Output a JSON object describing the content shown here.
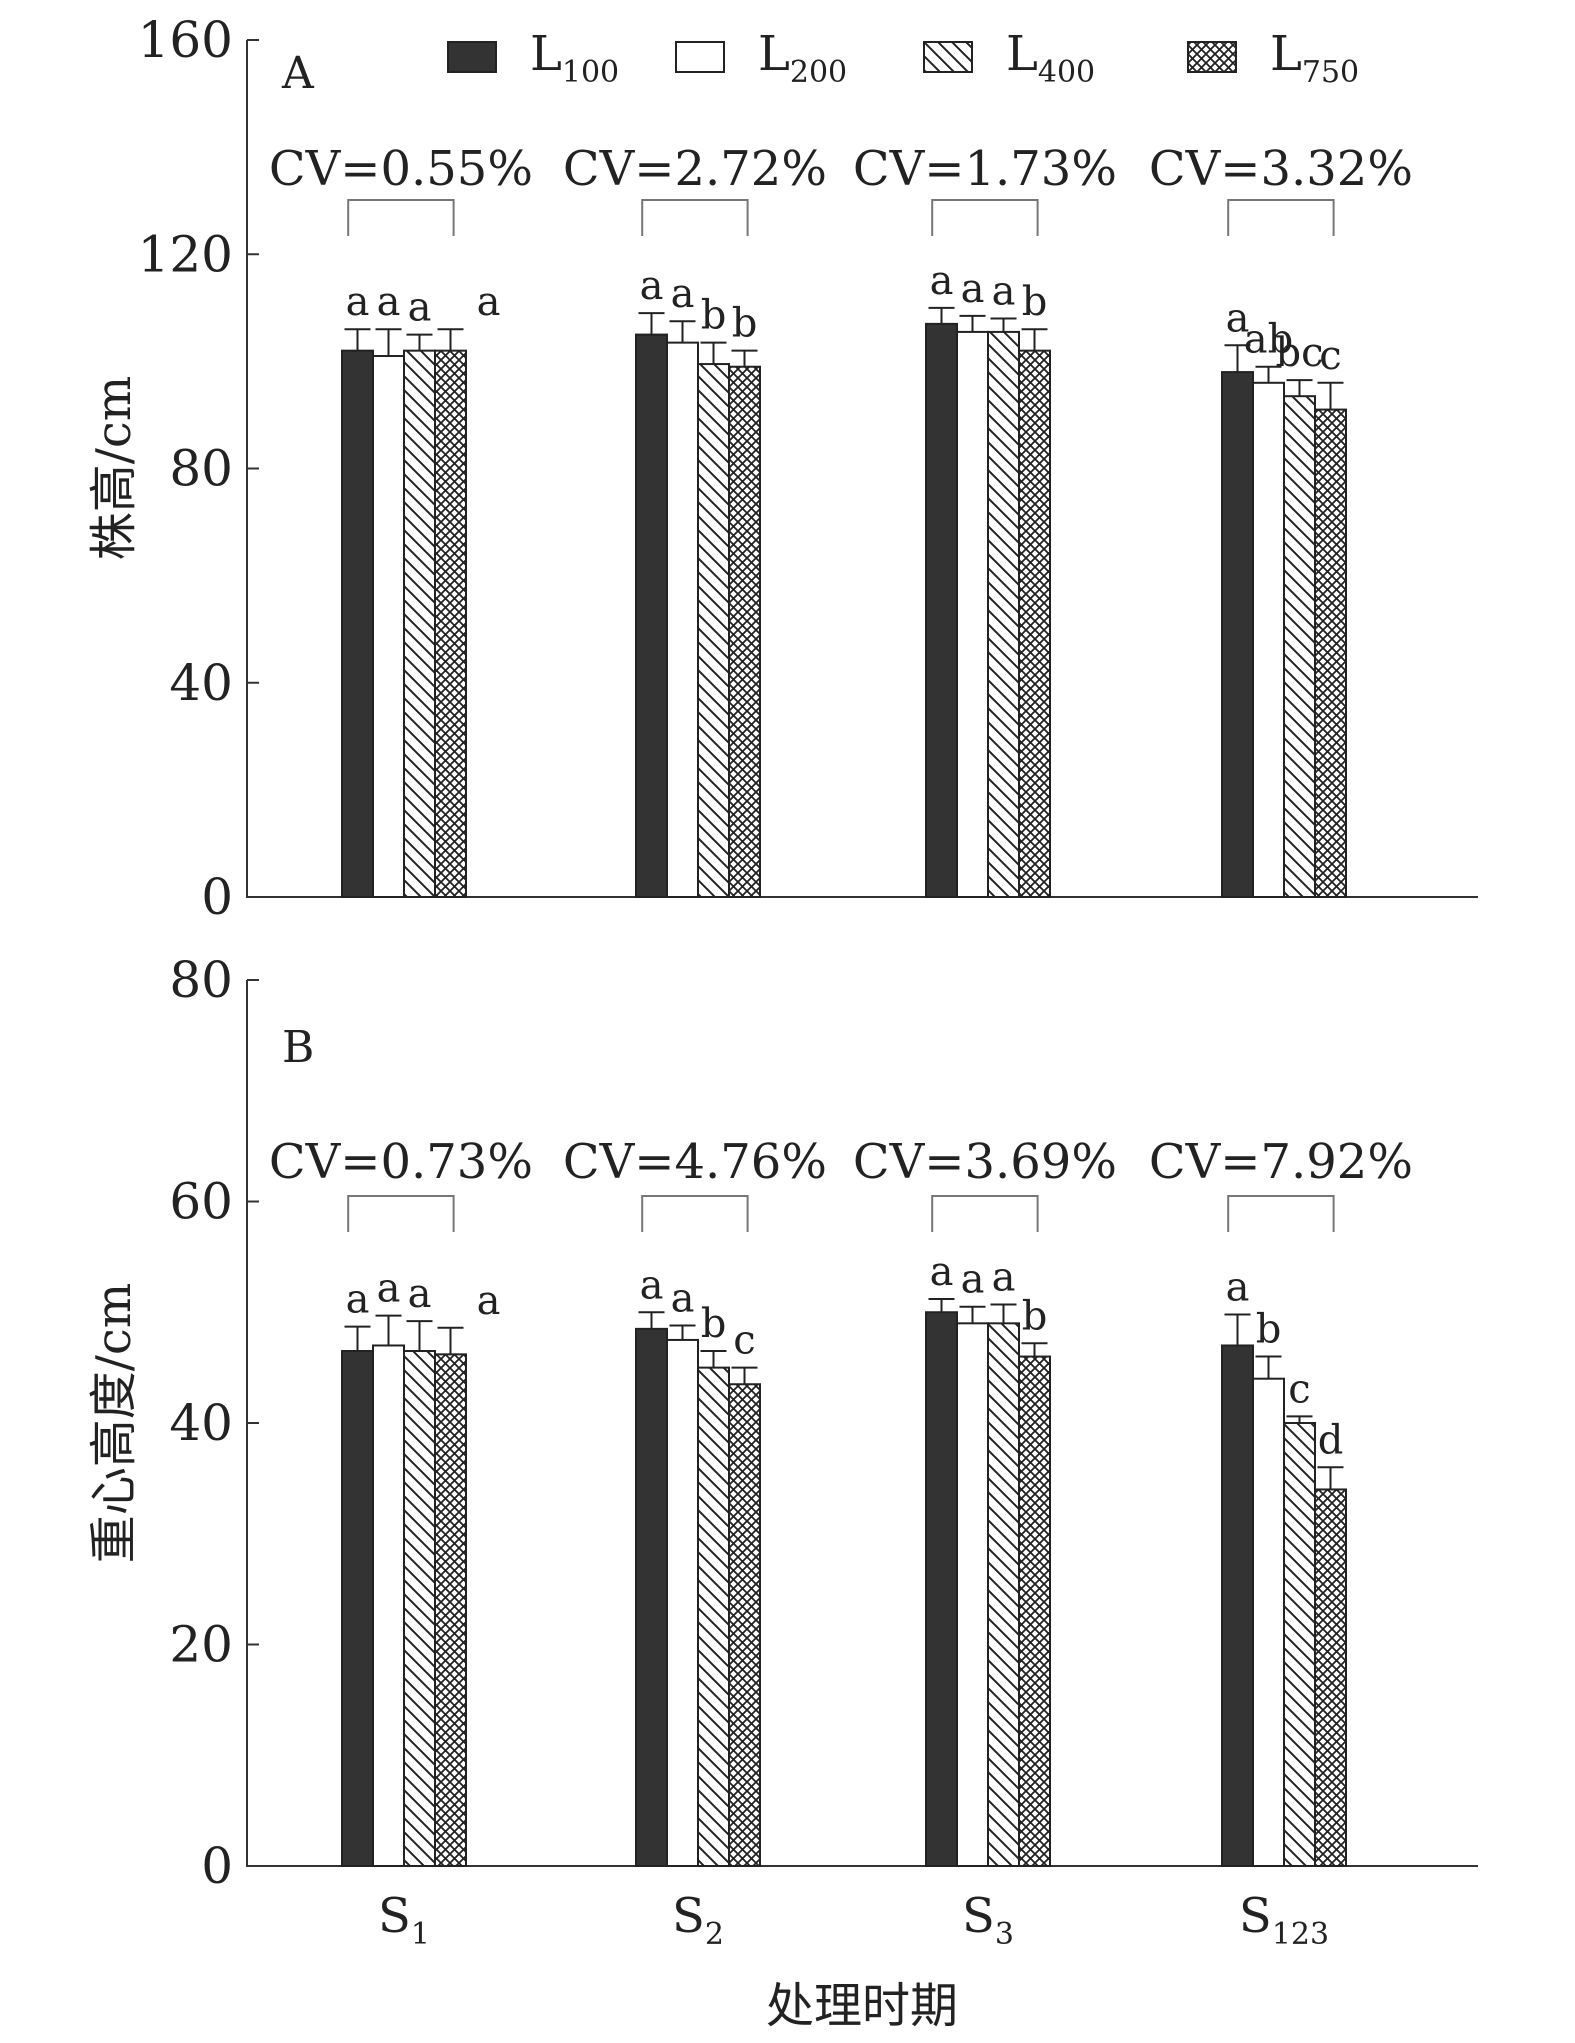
{
  "legend": [
    {
      "main": "L",
      "sub": "100",
      "fill": "dark"
    },
    {
      "main": "L",
      "sub": "200",
      "fill": "white"
    },
    {
      "main": "L",
      "sub": "400",
      "fill": "hatch"
    },
    {
      "main": "L",
      "sub": "750",
      "fill": "crosshatch"
    }
  ],
  "x_axis": {
    "title": "处理时期",
    "categories": [
      {
        "main": "S",
        "sub": "1"
      },
      {
        "main": "S",
        "sub": "2"
      },
      {
        "main": "S",
        "sub": "3"
      },
      {
        "main": "S",
        "sub": "123"
      }
    ]
  },
  "colors": {
    "dark": "#333333",
    "edge": "#222222",
    "axis": "#333333",
    "bracket": "#777777"
  },
  "chart_data": [
    {
      "type": "bar",
      "panel": "A",
      "ylabel": "株高/cm",
      "ylim": [
        0,
        160
      ],
      "yticks": [
        0,
        40,
        80,
        120,
        160
      ],
      "categories": [
        "S1",
        "S2",
        "S3",
        "S123"
      ],
      "series": [
        {
          "name": "L100",
          "values": [
            102,
            105,
            107,
            98
          ],
          "errors": [
            4,
            4,
            3,
            5
          ]
        },
        {
          "name": "L200",
          "values": [
            101,
            103.5,
            105.5,
            96
          ],
          "errors": [
            5,
            4,
            3,
            3
          ]
        },
        {
          "name": "L400",
          "values": [
            102,
            99.5,
            105.5,
            93.5
          ],
          "errors": [
            3,
            4,
            2.5,
            3
          ]
        },
        {
          "name": "L750",
          "values": [
            102,
            99,
            102,
            91
          ],
          "errors": [
            4,
            3,
            4,
            5
          ]
        }
      ],
      "significance": [
        [
          "a",
          "a",
          "a",
          "a"
        ],
        [
          "a",
          "a",
          "b",
          "b"
        ],
        [
          "a",
          "a",
          "a",
          "b"
        ],
        [
          "a",
          "ab",
          "bc",
          "c"
        ]
      ],
      "cv": [
        "CV=0.55%",
        "CV=2.72%",
        "CV=1.73%",
        "CV=3.32%"
      ]
    },
    {
      "type": "bar",
      "panel": "B",
      "ylabel": "重心高度/cm",
      "ylim": [
        0,
        80
      ],
      "yticks": [
        0,
        20,
        40,
        60,
        80
      ],
      "categories": [
        "S1",
        "S2",
        "S3",
        "S123"
      ],
      "series": [
        {
          "name": "L100",
          "values": [
            46.5,
            48.5,
            50,
            47
          ],
          "errors": [
            2.2,
            1.5,
            1.2,
            2.8
          ]
        },
        {
          "name": "L200",
          "values": [
            47,
            47.5,
            49,
            44
          ],
          "errors": [
            2.7,
            1.3,
            1.5,
            2
          ]
        },
        {
          "name": "L400",
          "values": [
            46.5,
            45,
            49,
            40
          ],
          "errors": [
            2.7,
            1.5,
            1.7,
            0.6
          ]
        },
        {
          "name": "L750",
          "values": [
            46.2,
            43.5,
            46,
            34
          ],
          "errors": [
            2.4,
            1.5,
            1.2,
            2
          ]
        }
      ],
      "significance": [
        [
          "a",
          "a",
          "a",
          "a"
        ],
        [
          "a",
          "a",
          "b",
          "c"
        ],
        [
          "a",
          "a",
          "a",
          "b"
        ],
        [
          "a",
          "b",
          "c",
          "d"
        ]
      ],
      "cv": [
        "CV=0.73%",
        "CV=4.76%",
        "CV=3.69%",
        "CV=7.92%"
      ]
    }
  ]
}
